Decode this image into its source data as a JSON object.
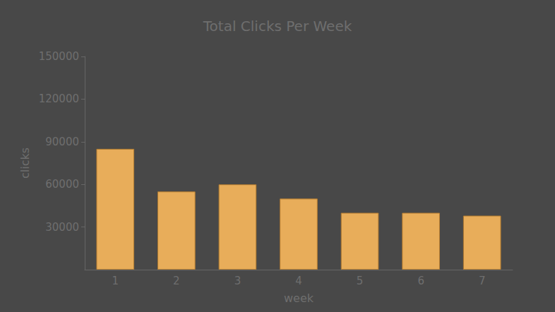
{
  "chart_data": {
    "type": "bar",
    "title": "Total Clicks Per Week",
    "x_label": "week",
    "y_label": "clicks",
    "categories": [
      "1",
      "2",
      "3",
      "4",
      "5",
      "6",
      "7"
    ],
    "values": [
      85000,
      55000,
      60000,
      50000,
      40000,
      40000,
      38000
    ],
    "color": "#e8ad5a",
    "ylim": [
      0,
      150000
    ],
    "yticks": [
      30000,
      60000,
      90000,
      120000,
      150000
    ],
    "grid": false
  }
}
